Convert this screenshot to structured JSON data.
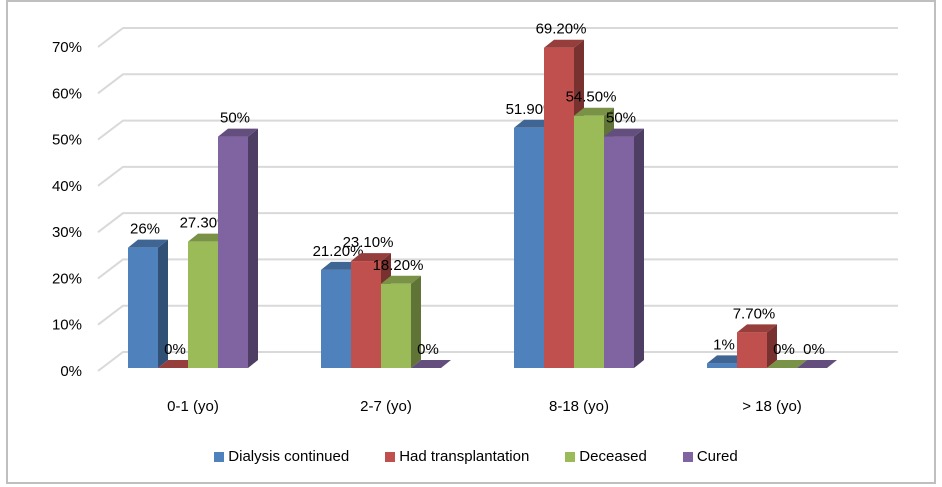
{
  "chart_data": {
    "type": "bar",
    "subtype": "3d-clustered-column",
    "title": "",
    "xlabel": "",
    "ylabel": "",
    "ylim": [
      0,
      70
    ],
    "y_ticks": [
      "0%",
      "10%",
      "20%",
      "30%",
      "40%",
      "50%",
      "60%",
      "70%"
    ],
    "y_tick_values": [
      0,
      10,
      20,
      30,
      40,
      50,
      60,
      70
    ],
    "grid": true,
    "legend_position": "bottom",
    "categories": [
      "0-1 (yo)",
      "2-7 (yo)",
      "8-18 (yo)",
      "> 18 (yo)"
    ],
    "series": [
      {
        "name": "Dialysis continued",
        "color": "#4f81bd",
        "values": [
          26,
          21.2,
          51.9,
          1
        ],
        "labels": [
          "26%",
          "21.20%",
          "51.90%",
          "1%"
        ]
      },
      {
        "name": "Had transplantation",
        "color": "#c0504d",
        "values": [
          0,
          23.1,
          69.2,
          7.7
        ],
        "labels": [
          "0%",
          "23.10%",
          "69.20%",
          "7.70%"
        ]
      },
      {
        "name": "Deceased",
        "color": "#9bbb59",
        "values": [
          27.3,
          18.2,
          54.5,
          0
        ],
        "labels": [
          "27.30%",
          "18.20%",
          "54.50%",
          "0%"
        ]
      },
      {
        "name": "Cured",
        "color": "#8064a2",
        "values": [
          50,
          0,
          50,
          0
        ],
        "labels": [
          "50%",
          "0%",
          "50%",
          "0%"
        ]
      }
    ]
  }
}
